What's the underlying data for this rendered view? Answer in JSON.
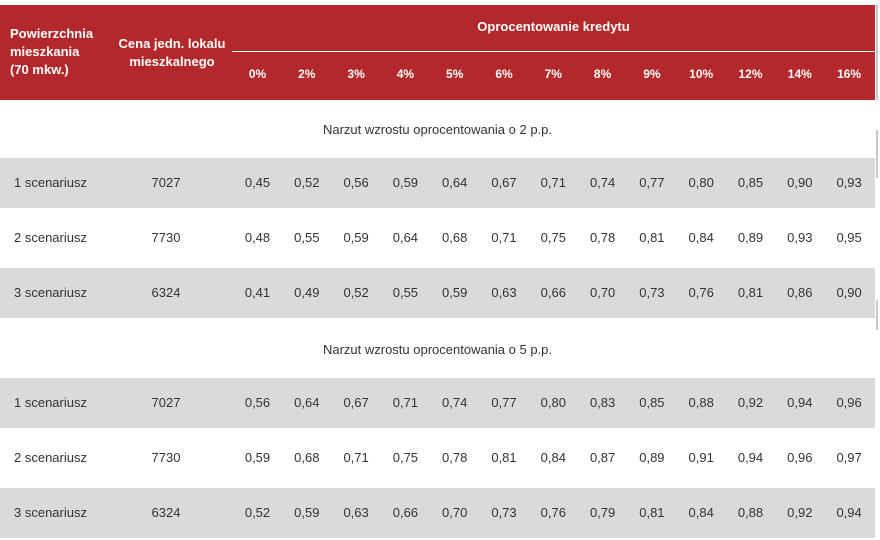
{
  "header": {
    "area_line1": "Powierzchnia",
    "area_line2": "mieszkania",
    "area_line3": "(70 mkw.)",
    "price_line1": "Cena jedn. lokalu",
    "price_line2": "mieszkalnego",
    "rate_title": "Oprocentowanie kredytu",
    "rates": [
      "0%",
      "2%",
      "3%",
      "4%",
      "5%",
      "6%",
      "7%",
      "8%",
      "9%",
      "10%",
      "12%",
      "14%",
      "16%"
    ]
  },
  "sections": [
    {
      "title": "Narzut wzrostu oprocentowania o 2 p.p.",
      "rows": [
        {
          "label": "1 scenariusz",
          "price": "7027",
          "values": [
            "0,45",
            "0,52",
            "0,56",
            "0,59",
            "0,64",
            "0,67",
            "0,71",
            "0,74",
            "0,77",
            "0,80",
            "0,85",
            "0,90",
            "0,93"
          ]
        },
        {
          "label": "2 scenariusz",
          "price": "7730",
          "values": [
            "0,48",
            "0,55",
            "0,59",
            "0,64",
            "0,68",
            "0,71",
            "0,75",
            "0,78",
            "0,81",
            "0,84",
            "0,89",
            "0,93",
            "0,95"
          ]
        },
        {
          "label": "3 scenariusz",
          "price": "6324",
          "values": [
            "0,41",
            "0,49",
            "0,52",
            "0,55",
            "0,59",
            "0,63",
            "0,66",
            "0,70",
            "0,73",
            "0,76",
            "0,81",
            "0,86",
            "0,90"
          ]
        }
      ]
    },
    {
      "title": "Narzut wzrostu oprocentowania o 5 p.p.",
      "rows": [
        {
          "label": "1 scenariusz",
          "price": "7027",
          "values": [
            "0,56",
            "0,64",
            "0,67",
            "0,71",
            "0,74",
            "0,77",
            "0,80",
            "0,83",
            "0,85",
            "0,88",
            "0,92",
            "0,94",
            "0,96"
          ]
        },
        {
          "label": "2 scenariusz",
          "price": "7730",
          "values": [
            "0,59",
            "0,68",
            "0,71",
            "0,75",
            "0,78",
            "0,81",
            "0,84",
            "0,87",
            "0,89",
            "0,91",
            "0,94",
            "0,96",
            "0,97"
          ]
        },
        {
          "label": "3 scenariusz",
          "price": "6324",
          "values": [
            "0,52",
            "0,59",
            "0,63",
            "0,66",
            "0,70",
            "0,73",
            "0,76",
            "0,79",
            "0,81",
            "0,84",
            "0,88",
            "0,92",
            "0,94"
          ]
        }
      ]
    }
  ]
}
